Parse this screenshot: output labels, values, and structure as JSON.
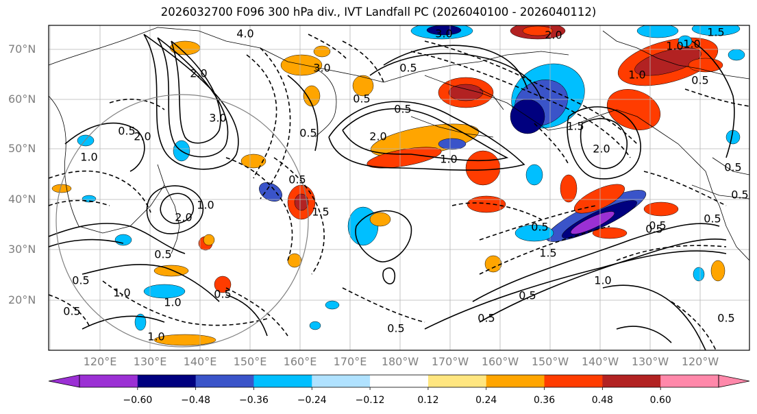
{
  "title": "2026032700 F096 300 hPa div., IVT Landfall PC (2026040100 - 2026040112)",
  "lat_labels": [
    "70°N",
    "60°N",
    "50°N",
    "40°N",
    "30°N",
    "20°N"
  ],
  "lon_labels": [
    "120°E",
    "130°E",
    "140°E",
    "150°E",
    "160°E",
    "170°E",
    "180°W",
    "170°W",
    "160°W",
    "150°W",
    "140°W",
    "130°W",
    "120°W"
  ],
  "colorbar": {
    "levels": [
      -0.6,
      -0.48,
      -0.36,
      -0.24,
      -0.12,
      0.12,
      0.24,
      0.36,
      0.48,
      0.6
    ],
    "tick_labels": [
      "−0.60",
      "−0.48",
      "−0.36",
      "−0.24",
      "−0.12",
      "0.12",
      "0.24",
      "0.36",
      "0.48",
      "0.60"
    ],
    "colors": [
      "#9b30d4",
      "#00007f",
      "#3a54c9",
      "#00bfff",
      "#b0e2ff",
      "#ffffff",
      "#ffe680",
      "#ffa500",
      "#ff3c00",
      "#b22222",
      "#ff88aa"
    ],
    "extend": "both"
  },
  "contour_labels": [
    "4.0",
    "3.0",
    "2.0",
    "1.5",
    "1.0",
    "0.5",
    "3.0",
    "2.0",
    "1.0",
    "0.5",
    "0.5",
    "1.0",
    "0.5",
    "2.0",
    "1.5",
    "0.5",
    "2.0",
    "1.0",
    "0.5",
    "0.5",
    "1.0",
    "0.5",
    "1.0",
    "0.5",
    "0.5",
    "0.5",
    "1.5",
    "3.0",
    "2.0",
    "0.5",
    "1.0",
    "1.0",
    "0.5",
    "0.5",
    "0.5",
    "1.0",
    "0.5",
    "0.5",
    "1.5",
    "0.5",
    "0.5",
    "2.0",
    "0.5",
    "1.0",
    "0.5"
  ],
  "colors": {
    "land_line": "#000000",
    "grid": "#b4b4b4",
    "circle": "#808080"
  }
}
